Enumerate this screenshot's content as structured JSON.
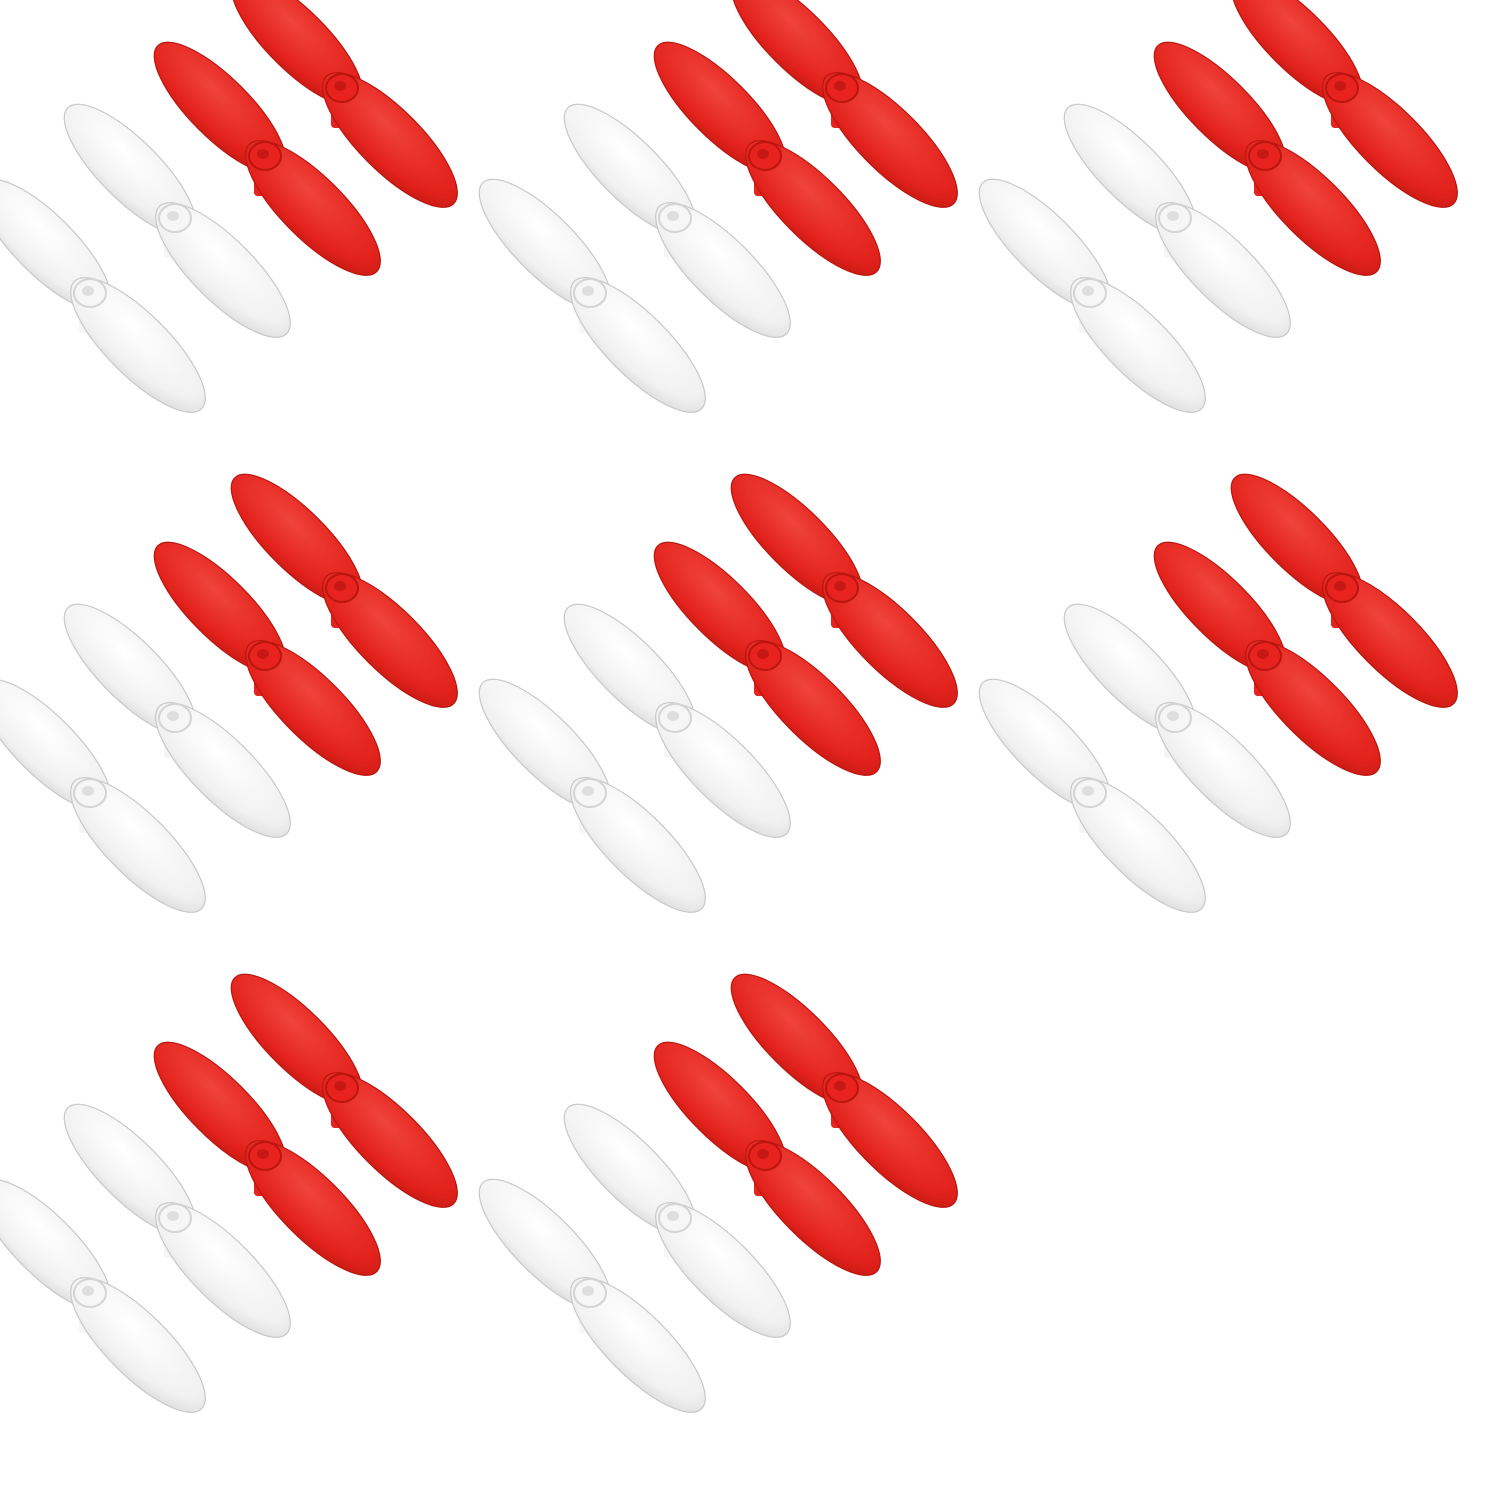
{
  "image": {
    "background_color": "#ffffff",
    "subject": "propeller-sets",
    "set_count": 8,
    "layout": {
      "rows": 3,
      "per_row": [
        3,
        3,
        2
      ]
    },
    "set": {
      "white_propellers": 2,
      "red_propellers": 2
    },
    "colors": {
      "red_body": "#e8231f",
      "red_shade": "#b9160f",
      "red_light": "#f2554e",
      "white_body": "#f6f6f6",
      "white_shade": "#d4d4d4",
      "white_edge": "#c8c8c8"
    }
  }
}
